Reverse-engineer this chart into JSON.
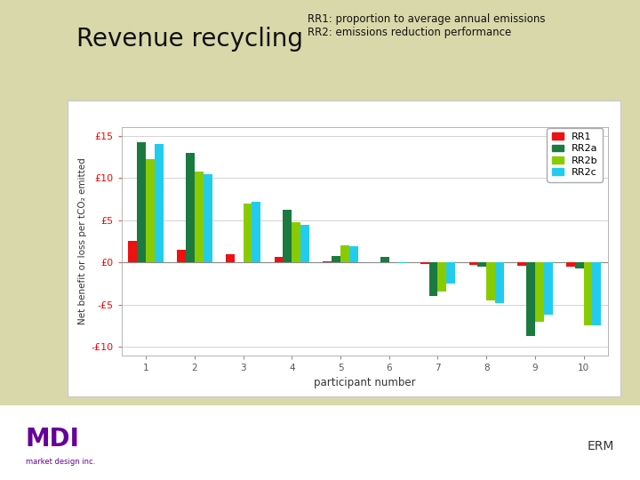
{
  "participants": [
    1,
    2,
    3,
    4,
    5,
    6,
    7,
    8,
    9,
    10
  ],
  "RR1": [
    2.5,
    1.5,
    1.0,
    0.6,
    0.15,
    0.0,
    -0.2,
    -0.3,
    -0.4,
    -0.5
  ],
  "RR2a": [
    14.2,
    13.0,
    0.0,
    6.2,
    0.7,
    0.6,
    -4.0,
    -0.5,
    -8.7,
    -0.7
  ],
  "RR2b": [
    12.2,
    10.8,
    7.0,
    4.8,
    2.0,
    0.0,
    -3.5,
    -4.5,
    -7.0,
    -7.5
  ],
  "RR2c": [
    14.0,
    10.4,
    7.2,
    4.4,
    1.9,
    -0.1,
    -2.5,
    -4.8,
    -6.2,
    -7.5
  ],
  "colors": {
    "RR1": "#ee1111",
    "RR2a": "#1a7a40",
    "RR2b": "#88cc00",
    "RR2c": "#22ccee"
  },
  "title_rr1": "RR1: proportion to average annual emissions",
  "title_rr2": "RR2: emissions reduction performance",
  "main_label": "Revenue recycling",
  "ylabel": "Net benefit or loss per tCO₂ emitted",
  "xlabel": "participant number",
  "ylim": [
    -11,
    16
  ],
  "yticks": [
    -10,
    -5,
    0,
    5,
    10,
    15
  ],
  "ytick_labels": [
    "-£10 -",
    "-£5",
    "£0",
    "£5 -",
    "£10 -",
    "£15"
  ],
  "bg_outer": "#d8d8aa",
  "bg_chart_box": "#ffffff",
  "bg_inner": "#ffffff",
  "bar_width": 0.18,
  "series_keys": [
    "RR1",
    "RR2a",
    "RR2b",
    "RR2c"
  ]
}
